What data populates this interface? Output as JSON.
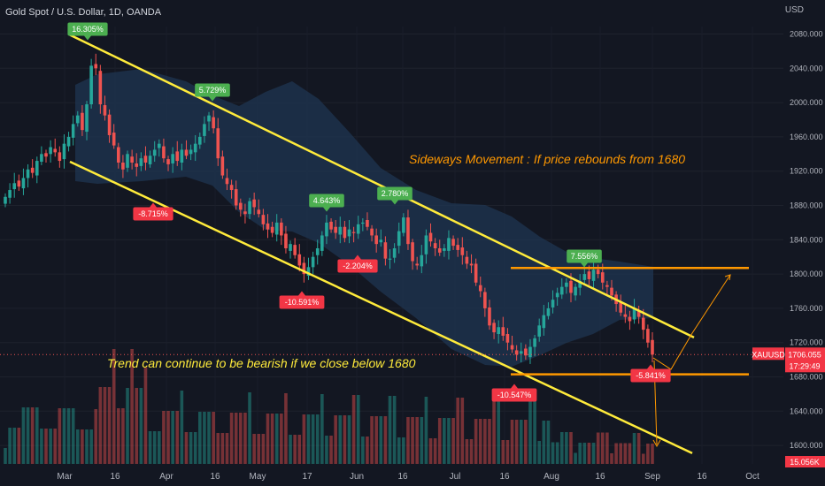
{
  "header": {
    "title": "Gold Spot / U.S. Dollar, 1D, OANDA",
    "currency": "USD"
  },
  "chart_data": {
    "type": "candlestick",
    "symbol": "XAUUSD",
    "last_price": "1706.055",
    "countdown": "17:29:49",
    "volume_label": "15.056K",
    "y_ticks": [
      "2080.000",
      "2040.000",
      "2000.000",
      "1960.000",
      "1920.000",
      "1880.000",
      "1840.000",
      "1800.000",
      "1760.000",
      "1720.000",
      "1680.000",
      "1640.000",
      "1600.000"
    ],
    "y_tick_values": [
      2080,
      2040,
      2000,
      1960,
      1920,
      1880,
      1840,
      1800,
      1760,
      1720,
      1680,
      1640,
      1600
    ],
    "ylim": [
      1588,
      2109
    ],
    "x_ticks": [
      "Mar",
      "16",
      "Apr",
      "16",
      "May",
      "17",
      "Jun",
      "16",
      "Jul",
      "16",
      "Aug",
      "16",
      "Sep",
      "16",
      "Oct"
    ],
    "closes": [
      1890,
      1898,
      1906,
      1902,
      1912,
      1922,
      1918,
      1932,
      1940,
      1937,
      1948,
      1942,
      1932,
      1952,
      1960,
      1975,
      1985,
      1968,
      1998,
      2043,
      2040,
      1998,
      1985,
      1962,
      1950,
      1930,
      1922,
      1940,
      1930,
      1925,
      1935,
      1930,
      1938,
      1945,
      1952,
      1935,
      1928,
      1940,
      1932,
      1945,
      1938,
      1945,
      1952,
      1960,
      1975,
      1985,
      1970,
      1935,
      1915,
      1905,
      1898,
      1880,
      1875,
      1870,
      1885,
      1878,
      1870,
      1858,
      1852,
      1848,
      1860,
      1845,
      1830,
      1835,
      1822,
      1810,
      1800,
      1808,
      1820,
      1830,
      1845,
      1860,
      1852,
      1848,
      1855,
      1842,
      1852,
      1848,
      1858,
      1860,
      1855,
      1845,
      1835,
      1840,
      1818,
      1818,
      1830,
      1850,
      1866,
      1835,
      1815,
      1810,
      1822,
      1845,
      1838,
      1830,
      1825,
      1830,
      1842,
      1833,
      1828,
      1822,
      1812,
      1810,
      1790,
      1780,
      1760,
      1740,
      1732,
      1738,
      1728,
      1720,
      1712,
      1706,
      1710,
      1705,
      1715,
      1725,
      1740,
      1752,
      1760,
      1770,
      1778,
      1785,
      1790,
      1778,
      1785,
      1792,
      1800,
      1794,
      1805,
      1800,
      1790,
      1785,
      1775,
      1765,
      1755,
      1750,
      1745,
      1760,
      1750,
      1735,
      1720,
      1706
    ],
    "channel_upper": {
      "from": [
        "Mar 1",
        2079
      ],
      "to": [
        "Sep 6",
        1726
      ]
    },
    "channel_lower": {
      "from": [
        "Mar 1",
        1931
      ],
      "to": [
        "Sep 15",
        1591
      ]
    },
    "levels": [
      1807,
      1683
    ],
    "markers": [
      {
        "label": "16.305%",
        "kind": "up"
      },
      {
        "label": "5.729%",
        "kind": "up"
      },
      {
        "label": "4.643%",
        "kind": "up"
      },
      {
        "label": "2.780%",
        "kind": "up"
      },
      {
        "label": "7.556%",
        "kind": "up"
      },
      {
        "label": "-8.715%",
        "kind": "down"
      },
      {
        "label": "-10.591%",
        "kind": "down"
      },
      {
        "label": "-2.204%",
        "kind": "down"
      },
      {
        "label": "-10.547%",
        "kind": "down"
      },
      {
        "label": "-5.841%",
        "kind": "down"
      }
    ],
    "annotations": [
      "Sideways Movement : If price rebounds from 1680",
      "Trend can continue to be bearish if we close below 1680"
    ],
    "colors": {
      "up": "#26a69a",
      "down": "#ef5350",
      "channel": "#ffeb3b",
      "level": "#ff9800",
      "band": "#1f3552",
      "up_tag": "#4caf50",
      "down_tag": "#f23645"
    }
  }
}
